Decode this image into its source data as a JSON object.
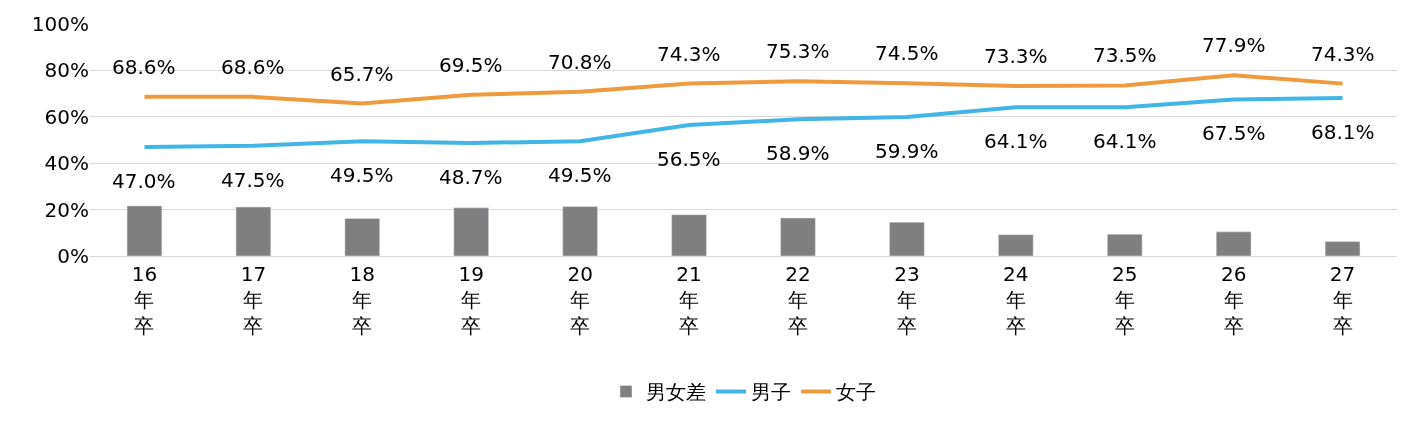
{
  "chart_data": {
    "type": "bar",
    "categories": [
      "16年卒",
      "17年卒",
      "18年卒",
      "19年卒",
      "20年卒",
      "21年卒",
      "22年卒",
      "23年卒",
      "24年卒",
      "25年卒",
      "26年卒",
      "27年卒"
    ],
    "series": [
      {
        "name": "男女差",
        "color": "#7f7f7f",
        "values": [
          21.6,
          21.1,
          16.2,
          20.8,
          21.3,
          17.8,
          16.4,
          14.6,
          9.2,
          9.4,
          10.4,
          6.2
        ]
      },
      {
        "name": "男子",
        "type": "line",
        "color": "#41b6e6",
        "values": [
          47.0,
          47.5,
          49.5,
          48.7,
          49.5,
          56.5,
          58.9,
          59.9,
          64.1,
          64.1,
          67.5,
          68.1
        ],
        "value_labels": [
          "47.0%",
          "47.5%",
          "49.5%",
          "48.7%",
          "49.5%",
          "56.5%",
          "58.9%",
          "59.9%",
          "64.1%",
          "64.1%",
          "67.5%",
          "68.1%"
        ]
      },
      {
        "name": "女子",
        "type": "line",
        "color": "#f09a3e",
        "values": [
          68.6,
          68.6,
          65.7,
          69.5,
          70.8,
          74.3,
          75.3,
          74.5,
          73.3,
          73.5,
          77.9,
          74.3
        ],
        "value_labels": [
          "68.6%",
          "68.6%",
          "65.7%",
          "69.5%",
          "70.8%",
          "74.3%",
          "75.3%",
          "74.5%",
          "73.3%",
          "73.5%",
          "77.9%",
          "74.3%"
        ]
      }
    ],
    "ylim": [
      0,
      100
    ],
    "yticks": [
      {
        "value": 0,
        "label": "0%"
      },
      {
        "value": 20,
        "label": "20%"
      },
      {
        "value": 40,
        "label": "40%"
      },
      {
        "value": 60,
        "label": "60%"
      },
      {
        "value": 80,
        "label": "80%"
      },
      {
        "value": 100,
        "label": "100%"
      }
    ],
    "grid": "y",
    "legend": "bottom",
    "marker": "none"
  }
}
